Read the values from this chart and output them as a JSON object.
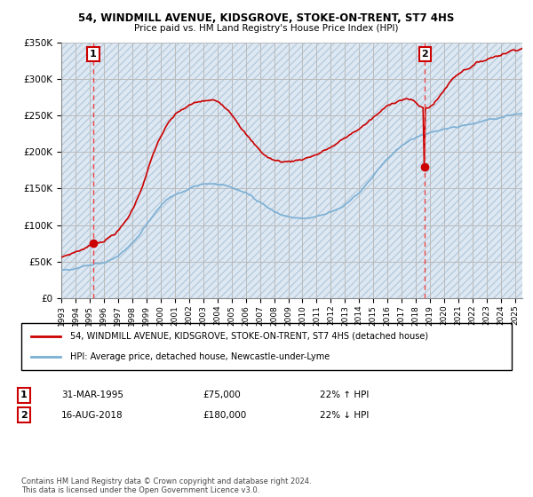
{
  "title1": "54, WINDMILL AVENUE, KIDSGROVE, STOKE-ON-TRENT, ST7 4HS",
  "title2": "Price paid vs. HM Land Registry's House Price Index (HPI)",
  "legend_line1": "54, WINDMILL AVENUE, KIDSGROVE, STOKE-ON-TRENT, ST7 4HS (detached house)",
  "legend_line2": "HPI: Average price, detached house, Newcastle-under-Lyme",
  "annotation1_date": "31-MAR-1995",
  "annotation1_price": "£75,000",
  "annotation1_hpi": "22% ↑ HPI",
  "annotation2_date": "16-AUG-2018",
  "annotation2_price": "£180,000",
  "annotation2_hpi": "22% ↓ HPI",
  "footer": "Contains HM Land Registry data © Crown copyright and database right 2024.\nThis data is licensed under the Open Government Licence v3.0.",
  "sale1_year": 1995.25,
  "sale1_value": 75000,
  "sale2_year": 2018.625,
  "sale2_value": 180000,
  "ylim": [
    0,
    350000
  ],
  "xlim_start": 1993,
  "xlim_end": 2025.5,
  "hpi_color": "#7bafd4",
  "price_color": "#cc0000",
  "dashed_line_color": "#ee4444",
  "hatch_facecolor": "#dde8f3",
  "hatch_edgecolor": "#b8ccdd",
  "grid_color": "#bbbbbb",
  "plot_bg": "#dde8f3"
}
